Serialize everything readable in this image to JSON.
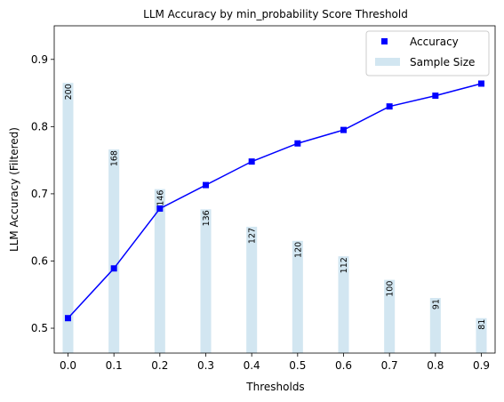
{
  "chart_data": {
    "type": "line",
    "title": "LLM Accuracy by min_probability Score Threshold",
    "xlabel": "Thresholds",
    "ylabel": "LLM Accuracy (Filtered)",
    "x": [
      0.0,
      0.1,
      0.2,
      0.3,
      0.4,
      0.5,
      0.6,
      0.7,
      0.8,
      0.9
    ],
    "x_tick_labels": [
      "0.0",
      "0.1",
      "0.2",
      "0.3",
      "0.4",
      "0.5",
      "0.6",
      "0.7",
      "0.8",
      "0.9"
    ],
    "xlim": [
      -0.03,
      0.93
    ],
    "ylim": [
      0.463,
      0.95
    ],
    "y_ticks": [
      0.5,
      0.6,
      0.7,
      0.8,
      0.9
    ],
    "y_tick_labels": [
      "0.5",
      "0.6",
      "0.7",
      "0.8",
      "0.9"
    ],
    "grid": false,
    "legend_position": "top-right",
    "series": [
      {
        "name": "Accuracy",
        "kind": "line-with-square-markers",
        "color": "#0000ff",
        "values": [
          0.515,
          0.589,
          0.678,
          0.713,
          0.748,
          0.775,
          0.795,
          0.83,
          0.846,
          0.864
        ]
      },
      {
        "name": "Sample Size",
        "kind": "bar",
        "color": "#a6cee3",
        "opacity": 0.5,
        "counts": [
          200,
          168,
          146,
          136,
          127,
          120,
          112,
          100,
          91,
          81
        ],
        "count_labels": [
          "200",
          "168",
          "146",
          "136",
          "127",
          "120",
          "112",
          "100",
          "91",
          "81"
        ],
        "bar_top_values": [
          0.865,
          0.766,
          0.707,
          0.677,
          0.651,
          0.63,
          0.607,
          0.572,
          0.545,
          0.515
        ]
      }
    ]
  }
}
